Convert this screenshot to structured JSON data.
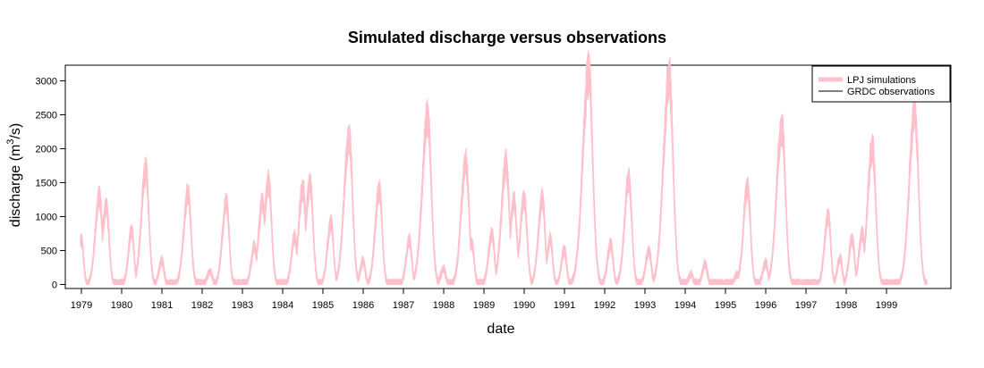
{
  "chart_data": {
    "type": "area",
    "title": "Simulated discharge versus observations",
    "xlabel": "date",
    "ylabel_main": "discharge (m",
    "ylabel_sup": "3",
    "ylabel_tail": "/s)",
    "xlim": [
      1978.6,
      2000.6
    ],
    "ylim": [
      -60,
      3230
    ],
    "y_ticks": [
      0,
      500,
      1000,
      1500,
      2000,
      2500,
      3000
    ],
    "x_ticks": [
      "1979",
      "1980",
      "1981",
      "1982",
      "1983",
      "1984",
      "1985",
      "1986",
      "1987",
      "1988",
      "1989",
      "1990",
      "1991",
      "1992",
      "1993",
      "1994",
      "1995",
      "1996",
      "1997",
      "1998",
      "1999"
    ],
    "legend": {
      "position": "top-right",
      "items": [
        {
          "label": "LPJ simulations",
          "color": "#FFC0CB",
          "style": "thick-band"
        },
        {
          "label": "GRDC observations",
          "color": "#000000",
          "style": "line"
        }
      ]
    },
    "series": [
      {
        "name": "LPJ simulations",
        "color": "#FFC0CB",
        "peaks": [
          {
            "year": 1979,
            "events": [
              [
                1979.0,
                650,
                70
              ],
              [
                1979.45,
                1300,
                130
              ],
              [
                1979.62,
                1150,
                120
              ]
            ]
          },
          {
            "year": 1980,
            "events": [
              [
                1980.25,
                800,
                80
              ],
              [
                1980.6,
                1670,
                150
              ]
            ]
          },
          {
            "year": 1981,
            "events": [
              [
                1981.0,
                350,
                60
              ],
              [
                1981.65,
                1330,
                140
              ]
            ]
          },
          {
            "year": 1982,
            "events": [
              [
                1982.2,
                190,
                60
              ],
              [
                1982.6,
                1220,
                120
              ]
            ]
          },
          {
            "year": 1983,
            "events": [
              [
                1983.3,
                550,
                80
              ],
              [
                1983.5,
                1230,
                120
              ],
              [
                1983.65,
                1500,
                140
              ]
            ]
          },
          {
            "year": 1984,
            "events": [
              [
                1984.3,
                700,
                80
              ],
              [
                1984.5,
                1420,
                130
              ],
              [
                1984.68,
                1480,
                140
              ]
            ]
          },
          {
            "year": 1985,
            "events": [
              [
                1985.2,
                900,
                100
              ],
              [
                1985.65,
                2130,
                180
              ]
            ]
          },
          {
            "year": 1986,
            "events": [
              [
                1986.0,
                350,
                60
              ],
              [
                1986.4,
                1390,
                130
              ]
            ]
          },
          {
            "year": 1987,
            "events": [
              [
                1987.15,
                650,
                80
              ],
              [
                1987.6,
                2440,
                200
              ]
            ]
          },
          {
            "year": 1988,
            "events": [
              [
                1988.0,
                230,
                60
              ],
              [
                1988.55,
                1800,
                160
              ],
              [
                1988.7,
                600,
                80
              ]
            ]
          },
          {
            "year": 1989,
            "events": [
              [
                1989.2,
                750,
                90
              ],
              [
                1989.55,
                1780,
                160
              ],
              [
                1989.75,
                1220,
                120
              ]
            ]
          },
          {
            "year": 1990,
            "events": [
              [
                1990.0,
                1250,
                130
              ],
              [
                1990.45,
                1270,
                120
              ],
              [
                1990.65,
                650,
                80
              ]
            ]
          },
          {
            "year": 1991,
            "events": [
              [
                1991.0,
                500,
                70
              ],
              [
                1991.6,
                3100,
                230
              ]
            ]
          },
          {
            "year": 1992,
            "events": [
              [
                1992.15,
                600,
                80
              ],
              [
                1992.6,
                1550,
                140
              ]
            ]
          },
          {
            "year": 1993,
            "events": [
              [
                1993.1,
                500,
                80
              ],
              [
                1993.6,
                3060,
                220
              ]
            ]
          },
          {
            "year": 1994,
            "events": [
              [
                1994.15,
                150,
                50
              ],
              [
                1994.5,
                300,
                60
              ]
            ]
          },
          {
            "year": 1995,
            "events": [
              [
                1995.3,
                150,
                50
              ],
              [
                1995.55,
                1440,
                130
              ]
            ]
          },
          {
            "year": 1996,
            "events": [
              [
                1996.0,
                320,
                60
              ],
              [
                1996.4,
                2320,
                190
              ]
            ]
          },
          {
            "year": 1997,
            "events": [
              [
                1997.55,
                1020,
                100
              ],
              [
                1997.85,
                380,
                60
              ]
            ]
          },
          {
            "year": 1998,
            "events": [
              [
                1998.15,
                680,
                80
              ],
              [
                1998.4,
                750,
                90
              ],
              [
                1998.65,
                2020,
                170
              ]
            ]
          },
          {
            "year": 1999,
            "events": [
              [
                1999.7,
                2550,
                200
              ]
            ]
          }
        ]
      },
      {
        "name": "GRDC observations",
        "color": "#000000",
        "visible": false
      }
    ]
  }
}
